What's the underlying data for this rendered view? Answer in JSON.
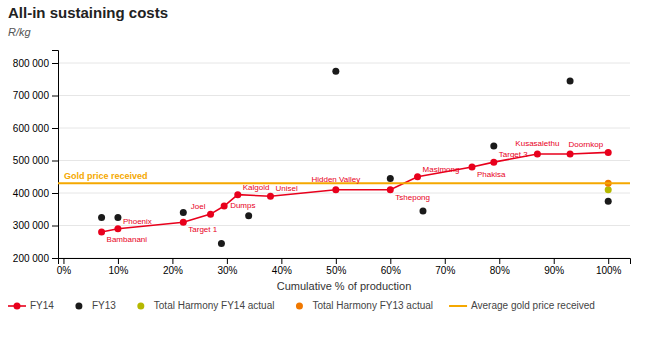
{
  "chart_data": {
    "type": "line",
    "title": "All-in sustaining costs",
    "subtitle": "R/kg",
    "x_label": "Cumulative % of production",
    "xlim": [
      -0.01,
      1.04
    ],
    "ylim": [
      200000,
      840000
    ],
    "xticks": [
      {
        "value": 0.0,
        "label": "0%"
      },
      {
        "value": 0.1,
        "label": "10%"
      },
      {
        "value": 0.2,
        "label": "20%"
      },
      {
        "value": 0.3,
        "label": "30%"
      },
      {
        "value": 0.4,
        "label": "40%"
      },
      {
        "value": 0.5,
        "label": "50%"
      },
      {
        "value": 0.6,
        "label": "60%"
      },
      {
        "value": 0.7,
        "label": "70%"
      },
      {
        "value": 0.8,
        "label": "80%"
      },
      {
        "value": 0.9,
        "label": "90%"
      },
      {
        "value": 1.0,
        "label": "100%"
      }
    ],
    "yticks": [
      {
        "value": 200000,
        "label": "200 000"
      },
      {
        "value": 300000,
        "label": "300 000"
      },
      {
        "value": 400000,
        "label": "400 000"
      },
      {
        "value": 500000,
        "label": "500 000"
      },
      {
        "value": 600000,
        "label": "600 000"
      },
      {
        "value": 700000,
        "label": "700 000"
      },
      {
        "value": 800000,
        "label": "800 000"
      }
    ],
    "grid": true,
    "legend": "bottom",
    "series": [
      {
        "name": "FY14",
        "type": "line",
        "marker": "circle",
        "color": "#e8001c",
        "x": [
          0.07,
          0.1,
          0.22,
          0.27,
          0.295,
          0.32,
          0.38,
          0.5,
          0.6,
          0.65,
          0.75,
          0.79,
          0.87,
          0.93,
          1.0
        ],
        "values": [
          280000,
          290000,
          310000,
          335000,
          360000,
          395000,
          390000,
          410000,
          410000,
          450000,
          480000,
          495000,
          520000,
          520000,
          525000
        ],
        "labels": [
          "Bambanani",
          "Phoenix",
          "Target 1",
          "Joel",
          "Dumps",
          "Kalgold",
          "Unisel",
          "Hidden Valley",
          "Tshepong",
          "Masimong",
          "Phakisa",
          "Target 3",
          "Kusasalethu",
          null,
          "Doornkop"
        ]
      },
      {
        "name": "FY13",
        "type": "scatter",
        "marker": "circle",
        "color": "#1a1a1a",
        "x": [
          0.07,
          0.1,
          0.22,
          0.29,
          0.34,
          0.5,
          0.6,
          0.66,
          0.79,
          0.93,
          1.0
        ],
        "values": [
          325000,
          325000,
          340000,
          245000,
          330000,
          775000,
          445000,
          345000,
          545000,
          745000,
          375000
        ]
      },
      {
        "name": "Total Harmony FY14 actual",
        "type": "scatter",
        "marker": "circle",
        "color": "#b5b800",
        "x": [
          1.0
        ],
        "values": [
          410000
        ]
      },
      {
        "name": "Total Harmony FY13 actual",
        "type": "scatter",
        "marker": "circle",
        "color": "#f07800",
        "x": [
          1.0
        ],
        "values": [
          430000
        ]
      },
      {
        "name": "Average gold price received",
        "type": "hline",
        "color": "#f5a800",
        "values": [
          430000
        ],
        "label": "Gold price received"
      }
    ]
  }
}
